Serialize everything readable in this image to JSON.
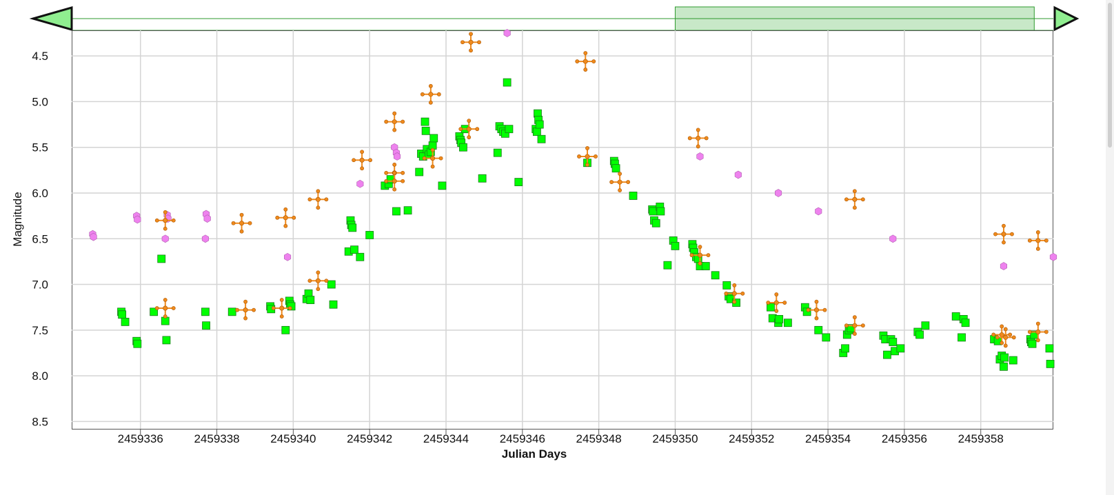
{
  "colors": {
    "green_series": "#00ff00",
    "orange_series": "#f08a1c",
    "violet_series": "#ee82ee",
    "navigator_fill": "#c8e8c8",
    "navigator_border": "#2e9a2e",
    "grid": "#d4d4d4"
  },
  "navigator": {
    "range_start": 2459350.0,
    "range_end": 2459359.4,
    "left_arrow_icon": "triangle-left-icon",
    "right_arrow_icon": "triangle-right-icon"
  },
  "chart_data": {
    "type": "scatter",
    "xlabel": "Julian Days",
    "ylabel": "Magnitude",
    "xlim": [
      2459334.2,
      2459359.9
    ],
    "ylim": [
      8.58,
      4.22
    ],
    "y_reversed": true,
    "grid": true,
    "x_ticks": [
      "2459336",
      "2459338",
      "2459340",
      "2459342",
      "2459344",
      "2459346",
      "2459348",
      "2459350",
      "2459352",
      "2459354",
      "2459356",
      "2459358"
    ],
    "x_tick_values": [
      2459336,
      2459338,
      2459340,
      2459342,
      2459344,
      2459346,
      2459348,
      2459350,
      2459352,
      2459354,
      2459356,
      2459358
    ],
    "y_ticks": [
      "4.5",
      "5.0",
      "5.5",
      "6.0",
      "6.5",
      "7.0",
      "7.5",
      "8.0",
      "8.5"
    ],
    "y_tick_values": [
      4.5,
      5.0,
      5.5,
      6.0,
      6.5,
      7.0,
      7.5,
      8.0,
      8.5
    ],
    "series": [
      {
        "marker": "square",
        "color": "#00ff00",
        "points": [
          [
            2459335.5,
            7.3
          ],
          [
            2459335.52,
            7.33
          ],
          [
            2459335.6,
            7.41
          ],
          [
            2459335.9,
            7.62
          ],
          [
            2459335.92,
            7.65
          ],
          [
            2459336.35,
            7.3
          ],
          [
            2459336.55,
            6.72
          ],
          [
            2459336.65,
            7.4
          ],
          [
            2459336.68,
            7.61
          ],
          [
            2459337.7,
            7.3
          ],
          [
            2459337.72,
            7.45
          ],
          [
            2459338.4,
            7.3
          ],
          [
            2459339.4,
            7.24
          ],
          [
            2459339.42,
            7.27
          ],
          [
            2459339.8,
            7.5
          ],
          [
            2459339.9,
            7.18
          ],
          [
            2459339.92,
            7.22
          ],
          [
            2459339.95,
            7.24
          ],
          [
            2459340.35,
            7.16
          ],
          [
            2459340.4,
            7.1
          ],
          [
            2459340.45,
            7.17
          ],
          [
            2459341.0,
            7.0
          ],
          [
            2459341.05,
            7.22
          ],
          [
            2459341.45,
            6.64
          ],
          [
            2459341.5,
            6.3
          ],
          [
            2459341.52,
            6.35
          ],
          [
            2459341.55,
            6.38
          ],
          [
            2459341.6,
            6.62
          ],
          [
            2459341.75,
            6.7
          ],
          [
            2459342.0,
            6.46
          ],
          [
            2459342.4,
            5.92
          ],
          [
            2459342.5,
            5.9
          ],
          [
            2459342.55,
            5.85
          ],
          [
            2459342.7,
            6.2
          ],
          [
            2459343.0,
            6.19
          ],
          [
            2459343.3,
            5.77
          ],
          [
            2459343.35,
            5.57
          ],
          [
            2459343.4,
            5.6
          ],
          [
            2459343.45,
            5.22
          ],
          [
            2459343.47,
            5.32
          ],
          [
            2459343.5,
            5.52
          ],
          [
            2459343.55,
            5.58
          ],
          [
            2459343.6,
            5.55
          ],
          [
            2459343.65,
            5.48
          ],
          [
            2459343.68,
            5.4
          ],
          [
            2459343.9,
            5.92
          ],
          [
            2459344.35,
            5.38
          ],
          [
            2459344.38,
            5.42
          ],
          [
            2459344.4,
            5.45
          ],
          [
            2459344.45,
            5.5
          ],
          [
            2459344.5,
            5.3
          ],
          [
            2459344.95,
            5.84
          ],
          [
            2459345.35,
            5.56
          ],
          [
            2459345.4,
            5.27
          ],
          [
            2459345.45,
            5.3
          ],
          [
            2459345.5,
            5.33
          ],
          [
            2459345.55,
            5.35
          ],
          [
            2459345.6,
            4.79
          ],
          [
            2459345.65,
            5.3
          ],
          [
            2459345.9,
            5.88
          ],
          [
            2459346.35,
            5.3
          ],
          [
            2459346.38,
            5.33
          ],
          [
            2459346.4,
            5.13
          ],
          [
            2459346.42,
            5.2
          ],
          [
            2459346.45,
            5.25
          ],
          [
            2459346.5,
            5.41
          ],
          [
            2459347.7,
            5.67
          ],
          [
            2459348.4,
            5.65
          ],
          [
            2459348.42,
            5.68
          ],
          [
            2459348.45,
            5.73
          ],
          [
            2459348.9,
            6.03
          ],
          [
            2459349.4,
            6.18
          ],
          [
            2459349.42,
            6.2
          ],
          [
            2459349.45,
            6.3
          ],
          [
            2459349.5,
            6.33
          ],
          [
            2459349.6,
            6.15
          ],
          [
            2459349.62,
            6.2
          ],
          [
            2459349.8,
            6.79
          ],
          [
            2459349.95,
            6.52
          ],
          [
            2459350.0,
            6.58
          ],
          [
            2459350.45,
            6.56
          ],
          [
            2459350.47,
            6.6
          ],
          [
            2459350.5,
            6.65
          ],
          [
            2459350.55,
            6.7
          ],
          [
            2459350.6,
            6.72
          ],
          [
            2459350.65,
            6.8
          ],
          [
            2459350.8,
            6.8
          ],
          [
            2459351.05,
            6.9
          ],
          [
            2459351.35,
            7.01
          ],
          [
            2459351.4,
            7.13
          ],
          [
            2459351.45,
            7.16
          ],
          [
            2459351.6,
            7.2
          ],
          [
            2459352.5,
            7.25
          ],
          [
            2459352.55,
            7.37
          ],
          [
            2459352.7,
            7.42
          ],
          [
            2459352.72,
            7.38
          ],
          [
            2459352.95,
            7.42
          ],
          [
            2459353.4,
            7.25
          ],
          [
            2459353.45,
            7.3
          ],
          [
            2459353.75,
            7.5
          ],
          [
            2459353.95,
            7.58
          ],
          [
            2459354.4,
            7.75
          ],
          [
            2459354.45,
            7.7
          ],
          [
            2459354.5,
            7.55
          ],
          [
            2459354.55,
            7.5
          ],
          [
            2459354.6,
            7.48
          ],
          [
            2459355.45,
            7.56
          ],
          [
            2459355.5,
            7.6
          ],
          [
            2459355.55,
            7.77
          ],
          [
            2459355.65,
            7.6
          ],
          [
            2459355.7,
            7.63
          ],
          [
            2459355.75,
            7.73
          ],
          [
            2459355.9,
            7.7
          ],
          [
            2459356.35,
            7.52
          ],
          [
            2459356.4,
            7.55
          ],
          [
            2459356.55,
            7.45
          ],
          [
            2459357.35,
            7.35
          ],
          [
            2459357.5,
            7.58
          ],
          [
            2459357.55,
            7.38
          ],
          [
            2459357.6,
            7.42
          ],
          [
            2459358.35,
            7.6
          ],
          [
            2459358.45,
            7.62
          ],
          [
            2459358.5,
            7.82
          ],
          [
            2459358.55,
            7.78
          ],
          [
            2459358.6,
            7.9
          ],
          [
            2459358.62,
            7.8
          ],
          [
            2459358.85,
            7.83
          ],
          [
            2459359.3,
            7.6
          ],
          [
            2459359.32,
            7.63
          ],
          [
            2459359.35,
            7.65
          ],
          [
            2459359.4,
            7.55
          ],
          [
            2459359.8,
            7.7
          ],
          [
            2459359.82,
            7.87
          ]
        ]
      },
      {
        "marker": "cross",
        "color": "#f08a1c",
        "points": [
          [
            2459336.65,
            6.3
          ],
          [
            2459336.65,
            7.26
          ],
          [
            2459338.65,
            6.33
          ],
          [
            2459338.75,
            7.28
          ],
          [
            2459339.8,
            6.27
          ],
          [
            2459339.7,
            7.26
          ],
          [
            2459340.65,
            6.07
          ],
          [
            2459340.65,
            6.96
          ],
          [
            2459341.8,
            5.64
          ],
          [
            2459342.65,
            5.22
          ],
          [
            2459342.65,
            5.78
          ],
          [
            2459342.65,
            5.87
          ],
          [
            2459343.6,
            4.92
          ],
          [
            2459343.65,
            5.62
          ],
          [
            2459344.65,
            4.35
          ],
          [
            2459344.6,
            5.3
          ],
          [
            2459347.65,
            4.56
          ],
          [
            2459347.7,
            5.6
          ],
          [
            2459348.55,
            5.88
          ],
          [
            2459350.6,
            5.4
          ],
          [
            2459350.65,
            6.68
          ],
          [
            2459351.55,
            7.1
          ],
          [
            2459352.65,
            7.2
          ],
          [
            2459353.7,
            7.28
          ],
          [
            2459354.7,
            6.07
          ],
          [
            2459354.7,
            7.45
          ],
          [
            2459358.6,
            6.45
          ],
          [
            2459358.55,
            7.55
          ],
          [
            2459358.65,
            7.58
          ],
          [
            2459359.5,
            6.52
          ],
          [
            2459359.5,
            7.52
          ]
        ]
      },
      {
        "marker": "hexagon",
        "color": "#ee82ee",
        "points": [
          [
            2459334.75,
            6.45
          ],
          [
            2459334.77,
            6.48
          ],
          [
            2459335.9,
            6.25
          ],
          [
            2459335.92,
            6.29
          ],
          [
            2459336.65,
            6.5
          ],
          [
            2459336.7,
            6.24
          ],
          [
            2459336.72,
            6.28
          ],
          [
            2459337.7,
            6.5
          ],
          [
            2459337.72,
            6.23
          ],
          [
            2459337.75,
            6.28
          ],
          [
            2459339.85,
            6.7
          ],
          [
            2459341.75,
            5.9
          ],
          [
            2459342.65,
            5.5
          ],
          [
            2459342.7,
            5.56
          ],
          [
            2459342.72,
            5.6
          ],
          [
            2459345.6,
            4.25
          ],
          [
            2459350.65,
            5.6
          ],
          [
            2459351.65,
            5.8
          ],
          [
            2459352.7,
            6.0
          ],
          [
            2459353.75,
            6.2
          ],
          [
            2459355.7,
            6.5
          ],
          [
            2459358.6,
            6.8
          ],
          [
            2459359.9,
            6.7
          ]
        ]
      }
    ]
  }
}
